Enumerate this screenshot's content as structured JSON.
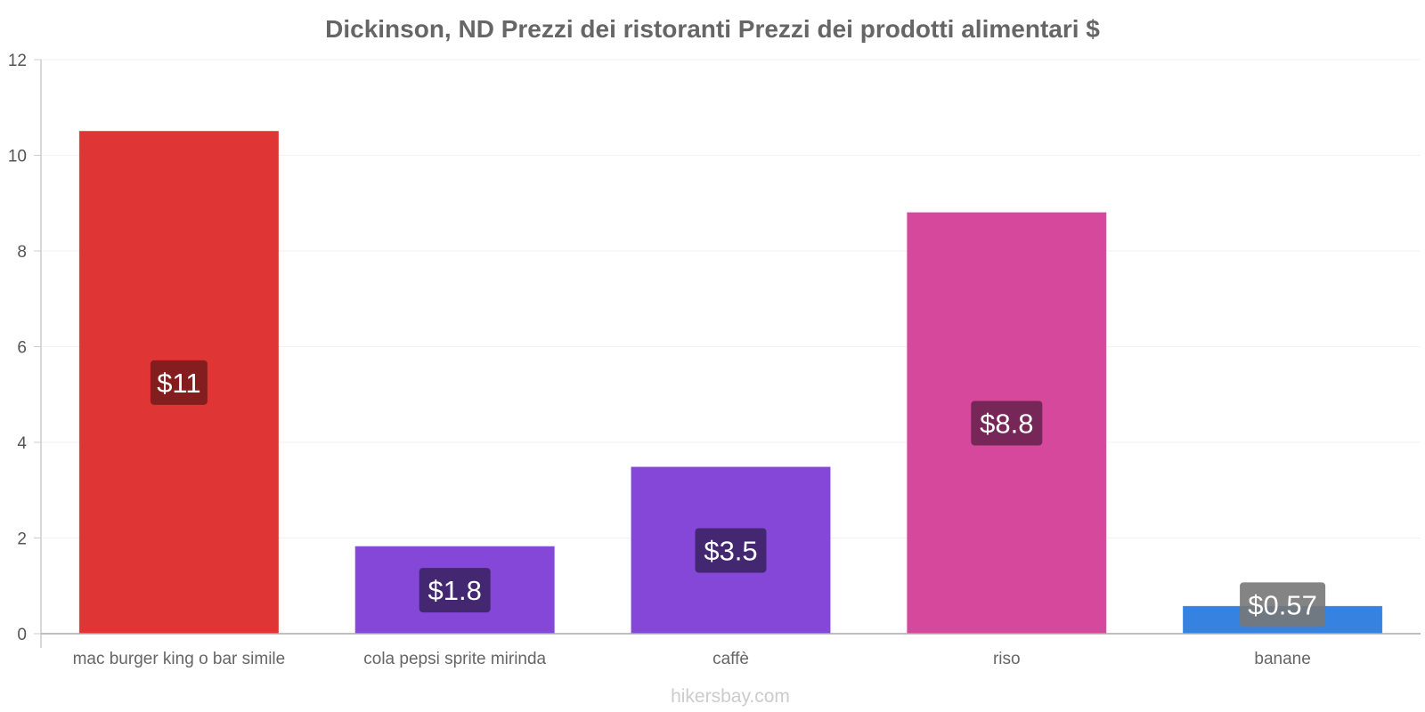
{
  "chart_data": {
    "type": "bar",
    "title": "Dickinson, ND Prezzi dei ristoranti Prezzi dei prodotti alimentari $",
    "xlabel": "",
    "ylabel": "",
    "ylim": [
      0,
      12
    ],
    "yticks": [
      "0",
      "2",
      "4",
      "6",
      "8",
      "10",
      "12"
    ],
    "grid": true,
    "categories": [
      "mac burger king o bar simile",
      "cola pepsi sprite mirinda",
      "caffè",
      "riso",
      "banane"
    ],
    "values": [
      10.5,
      1.82,
      3.48,
      8.8,
      0.57
    ],
    "data_labels": [
      "$11",
      "$1.8",
      "$3.5",
      "$8.8",
      "$0.57"
    ],
    "bar_colors": [
      "#e03535",
      "#8447d8",
      "#8447d8",
      "#d6489b",
      "#3582e0"
    ],
    "label_bg_colors": [
      "#7a1c1c",
      "#3d2466",
      "#3d2466",
      "#6b2350",
      "#777777"
    ],
    "watermark": "hikersbay.com"
  }
}
